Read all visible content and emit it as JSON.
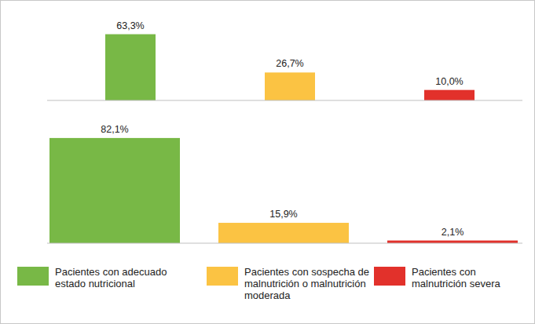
{
  "chart_data": {
    "type": "bar",
    "categories": [
      "Pacientes con adecuado estado nutricional",
      "Pacientes con sospecha de malnutrición o malnutrición moderada",
      "Pacientes con malnutrición severa"
    ],
    "colors": [
      "#78b846",
      "#fbc343",
      "#e2312b"
    ],
    "series": [
      {
        "values": [
          63.3,
          26.7,
          10.0
        ],
        "value_labels": [
          "63,3%",
          "26,7%",
          "10,0%"
        ]
      },
      {
        "values": [
          82.1,
          15.9,
          2.1
        ],
        "value_labels": [
          "82,1%",
          "15,9%",
          "2,1%"
        ]
      }
    ],
    "ylim": [
      0,
      90
    ],
    "data_labels": true,
    "tick_labels": false,
    "legend": "bottom"
  }
}
